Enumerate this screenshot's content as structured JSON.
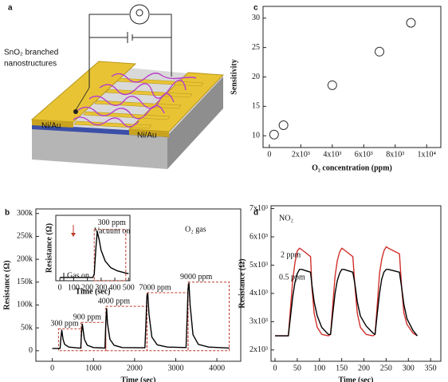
{
  "diagram": {
    "panel": "a",
    "label_lines": [
      "SnO₂ branched",
      "nanostructures"
    ],
    "electrodes": [
      "Ni/Au",
      "Ni/Au"
    ]
  },
  "chart_data": [
    {
      "type": "scatter",
      "panel": "c",
      "xlabel": "O₂ concentration (ppm)",
      "ylabel": "Sensitivity",
      "x": [
        300,
        900,
        4000,
        7000,
        9000
      ],
      "values": [
        10.2,
        11.8,
        18.6,
        24.3,
        29.2
      ],
      "color": "#333333",
      "xlim": [
        -400,
        10900
      ],
      "ylim": [
        8,
        32
      ],
      "xticks": [
        0,
        {
          "value": 2000,
          "label": "2x10³"
        },
        {
          "value": 4000,
          "label": "4x10³"
        },
        {
          "value": 6000,
          "label": "6x10³"
        },
        {
          "value": 8000,
          "label": "8x10³"
        },
        {
          "value": 10000,
          "label": "1x10⁴"
        }
      ],
      "yticks": [
        10,
        15,
        20,
        25,
        30
      ]
    },
    {
      "type": "line",
      "panel": "b",
      "xlabel": "Time (sec)",
      "ylabel": "Resistance (Ω)",
      "x": [
        0,
        190,
        210,
        230,
        260,
        300,
        400,
        650,
        690,
        710,
        730,
        780,
        850,
        1000,
        1280,
        1300,
        1320,
        1340,
        1400,
        1500,
        1700,
        2250,
        2280,
        2300,
        2320,
        2350,
        2420,
        2550,
        2800,
        3250,
        3280,
        3300,
        3320,
        3350,
        3420,
        3550,
        3800,
        4300
      ],
      "series": [
        {
          "color": "#000000",
          "values": [
            5000,
            5000,
            30000,
            45000,
            25000,
            14000,
            8000,
            6000,
            6000,
            40000,
            58000,
            25000,
            12000,
            7000,
            6000,
            60000,
            92000,
            60000,
            25000,
            12000,
            7000,
            6500,
            70000,
            120000,
            125000,
            80000,
            30000,
            13000,
            8000,
            7000,
            80000,
            135000,
            148000,
            100000,
            35000,
            14000,
            8000,
            6000
          ]
        }
      ],
      "regions": [
        {
          "x": [
            150,
            700
          ],
          "y": 48000,
          "label": "300 ppm"
        },
        {
          "x": [
            700,
            1300
          ],
          "y": 62000,
          "label": "900 ppm"
        },
        {
          "x": [
            1300,
            2300
          ],
          "y": 97000,
          "label": "4000 ppm"
        },
        {
          "x": [
            2300,
            3300
          ],
          "y": 127000,
          "label": "7000 ppm"
        },
        {
          "x": [
            3300,
            4300
          ],
          "y": 150000,
          "label": "9000 ppm"
        }
      ],
      "region_color": "#c0392b",
      "annotations": [
        "O₂ gas"
      ],
      "xlim": [
        -400,
        4580
      ],
      "ylim": [
        -23000,
        310000
      ],
      "xticks": [
        0,
        1000,
        2000,
        3000,
        4000
      ],
      "yticks": [
        0,
        {
          "value": 50000,
          "label": "50k"
        },
        {
          "value": 100000,
          "label": "100k"
        },
        {
          "value": 150000,
          "label": "150k"
        },
        {
          "value": 200000,
          "label": "200k"
        },
        {
          "value": 250000,
          "label": "250k"
        },
        {
          "value": 300000,
          "label": "300k"
        }
      ]
    },
    {
      "type": "line",
      "xlabel": "Time (sec)",
      "ylabel": "Resistance (Ω)",
      "x": [
        0,
        240,
        250,
        262,
        272,
        285,
        300,
        330,
        370,
        420,
        480,
        500
      ],
      "series": [
        {
          "color": "#000000",
          "values": [
            3000,
            3000,
            6000,
            30000,
            45000,
            38000,
            28000,
            18000,
            12000,
            9000,
            7000,
            6500
          ]
        }
      ],
      "regions": [
        {
          "x": [
            250,
            480
          ],
          "y": 47000,
          "label": "300 ppm"
        }
      ],
      "region_color": "#c0392b",
      "annotations": [
        "Vacuum on",
        "Gas on"
      ],
      "xlim": [
        -30,
        510
      ],
      "ylim": [
        0,
        60000
      ],
      "xticks": [
        0,
        100,
        200,
        300,
        400,
        500
      ],
      "yticks": []
    },
    {
      "type": "line",
      "panel": "d",
      "xlabel": "Time (sec)",
      "ylabel": "Resistance (Ω)",
      "x": [
        0,
        30,
        35,
        40,
        45,
        50,
        55,
        60,
        80,
        83,
        88,
        95,
        105,
        120,
        125,
        130,
        135,
        140,
        145,
        150,
        155,
        175,
        180,
        185,
        192,
        205,
        220,
        225,
        230,
        235,
        240,
        245,
        250,
        255,
        280,
        285,
        290,
        297,
        310,
        320
      ],
      "series": [
        {
          "name": "2 ppm",
          "color": "#d0312d",
          "values": [
            2500,
            2500,
            3500,
            4500,
            5100,
            5500,
            5600,
            5550,
            5300,
            4200,
            3300,
            2800,
            2550,
            2500,
            2550,
            3600,
            4600,
            5150,
            5450,
            5600,
            5550,
            5300,
            4200,
            3300,
            2800,
            2550,
            2500,
            2550,
            3600,
            4700,
            5200,
            5500,
            5650,
            5600,
            5400,
            4200,
            3300,
            2900,
            2600,
            2500
          ]
        },
        {
          "name": "0.5 ppm",
          "color": "#000000",
          "values": [
            2500,
            2500,
            3200,
            3900,
            4400,
            4700,
            4850,
            4850,
            4750,
            4300,
            3700,
            3200,
            2800,
            2550,
            2550,
            3300,
            4000,
            4450,
            4700,
            4850,
            4850,
            4750,
            4300,
            3700,
            3200,
            2850,
            2600,
            2550,
            3300,
            4000,
            4500,
            4750,
            4850,
            4850,
            4750,
            4200,
            3600,
            3100,
            2700,
            2500
          ]
        }
      ],
      "annotations": [
        "NO₂"
      ],
      "xlim": [
        -9,
        373
      ],
      "ylim": [
        1600,
        7100
      ],
      "xticks": [
        0,
        50,
        100,
        150,
        200,
        250,
        300,
        350
      ],
      "yticks": [
        {
          "value": 2000,
          "label": "2x10³"
        },
        {
          "value": 3000,
          "label": "3x10³"
        },
        {
          "value": 4000,
          "label": "4x10³"
        },
        {
          "value": 5000,
          "label": "5x10³"
        },
        {
          "value": 6000,
          "label": "6x10³"
        },
        {
          "value": 7000,
          "label": "7x10³"
        }
      ]
    }
  ]
}
